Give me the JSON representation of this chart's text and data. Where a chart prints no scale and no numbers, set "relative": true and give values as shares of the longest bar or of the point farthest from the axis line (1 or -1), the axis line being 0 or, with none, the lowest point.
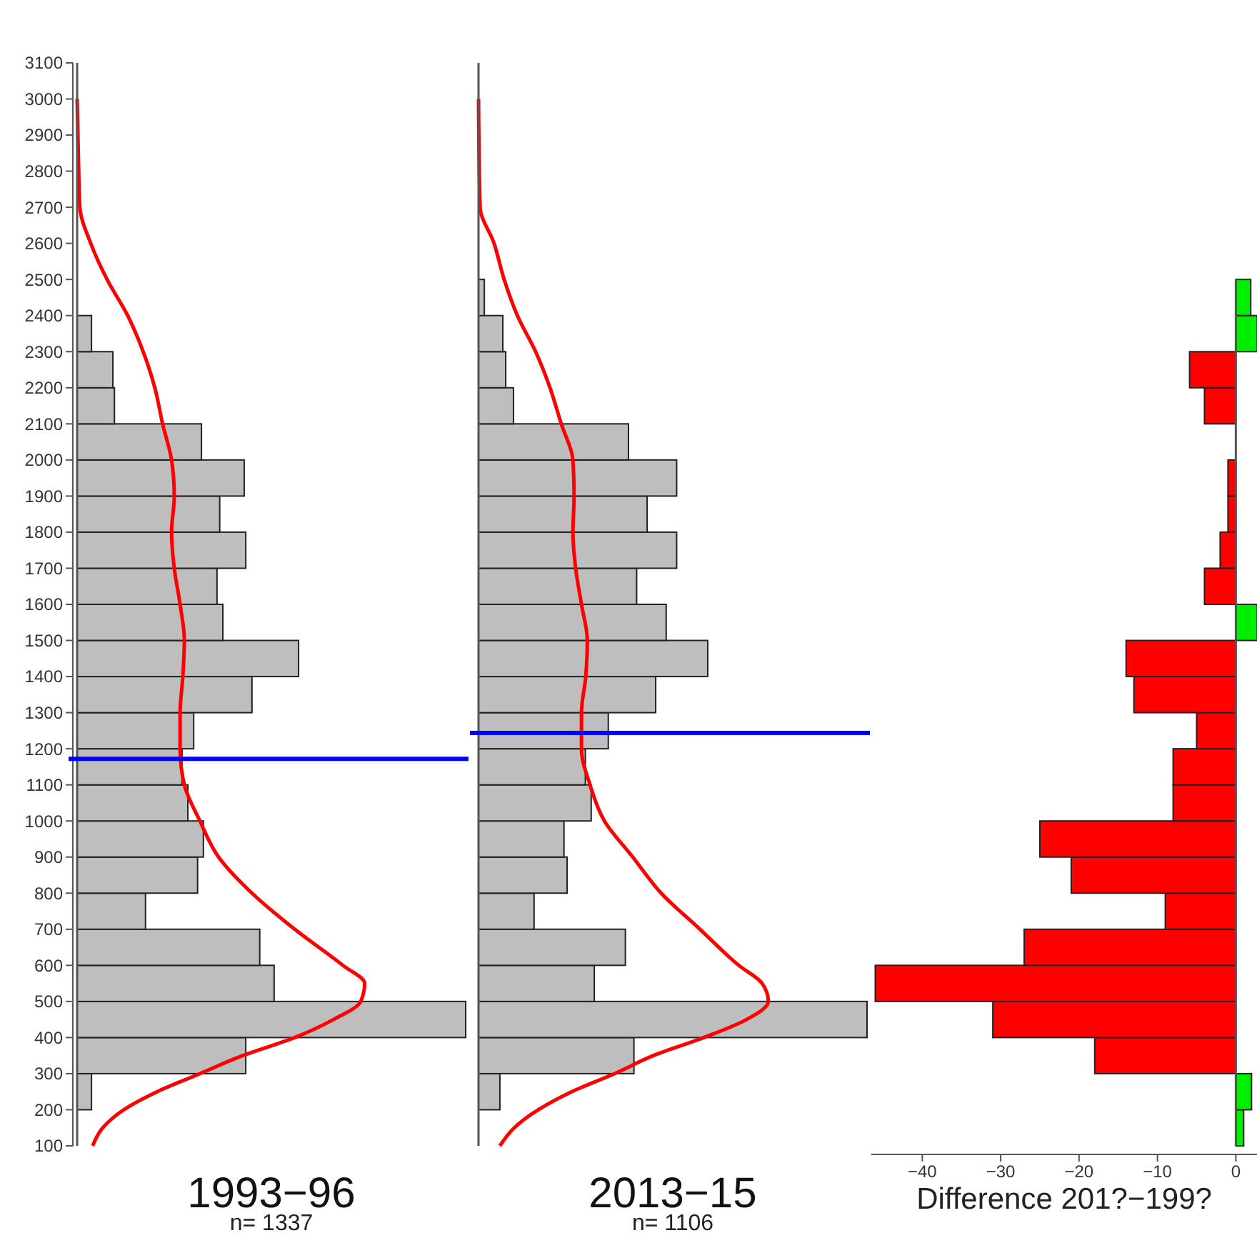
{
  "chart_data": [
    {
      "type": "histogram",
      "orientation": "horizontal",
      "relative": true,
      "title": "1993−96",
      "subtitle": "n= 1337",
      "ylim": [
        100,
        3100
      ],
      "yticks": [
        100,
        200,
        300,
        400,
        500,
        600,
        700,
        800,
        900,
        1000,
        1100,
        1200,
        1300,
        1400,
        1500,
        1600,
        1700,
        1800,
        1900,
        2000,
        2100,
        2200,
        2300,
        2400,
        2500,
        2600,
        2700,
        2800,
        2900,
        3000,
        3100
      ],
      "bins": [
        200,
        300,
        400,
        500,
        600,
        700,
        800,
        900,
        1000,
        1100,
        1200,
        1300,
        1400,
        1500,
        1600,
        1700,
        1800,
        1900,
        2000,
        2100,
        2200,
        2300,
        2400
      ],
      "series": [
        {
          "values": [
            0.037,
            0.434,
            1,
            0.507,
            0.47,
            0.176,
            0.31,
            0.325,
            0.285,
            0.27,
            0.3,
            0.45,
            0.57,
            0.375,
            0.36,
            0.434,
            0.367,
            0.43,
            0.32,
            0.096,
            0.092,
            0.037
          ],
          "color": "#bebebe"
        },
        {
          "type": "line",
          "color": "#ff0000",
          "x": [
            100,
            150,
            200,
            250,
            300,
            350,
            400,
            450,
            500,
            550,
            600,
            700,
            800,
            900,
            1000,
            1100,
            1200,
            1300,
            1400,
            1500,
            1600,
            1700,
            1800,
            1900,
            2000,
            2100,
            2200,
            2300,
            2400,
            2500,
            2600,
            2700,
            2800,
            3000
          ],
          "values": [
            0.04,
            0.066,
            0.12,
            0.206,
            0.316,
            0.426,
            0.56,
            0.66,
            0.73,
            0.74,
            0.684,
            0.56,
            0.45,
            0.364,
            0.316,
            0.276,
            0.265,
            0.265,
            0.272,
            0.276,
            0.265,
            0.25,
            0.243,
            0.25,
            0.243,
            0.22,
            0.2,
            0.17,
            0.13,
            0.077,
            0.035,
            0.007,
            0.004,
            0
          ]
        }
      ],
      "ref_lines": [
        {
          "axis": "y",
          "value": 1172,
          "color": "#0000ff"
        }
      ]
    },
    {
      "type": "histogram",
      "orientation": "horizontal",
      "relative": true,
      "tick_labels": false,
      "title": "2013−15",
      "subtitle": "n= 1106",
      "ylim": [
        100,
        3100
      ],
      "bins": [
        200,
        300,
        400,
        500,
        600,
        700,
        800,
        900,
        1000,
        1100,
        1200,
        1300,
        1400,
        1500,
        1600,
        1700,
        1800,
        1900,
        2000,
        2100,
        2200,
        2300,
        2400,
        2500
      ],
      "series": [
        {
          "values": [
            0.055,
            0.4,
            1,
            0.298,
            0.378,
            0.143,
            0.228,
            0.22,
            0.29,
            0.275,
            0.334,
            0.456,
            0.59,
            0.483,
            0.407,
            0.51,
            0.434,
            0.51,
            0.386,
            0.09,
            0.07,
            0.0625,
            0.015
          ],
          "color": "#bebebe"
        },
        {
          "type": "line",
          "color": "#ff0000",
          "x": [
            100,
            150,
            200,
            250,
            300,
            350,
            400,
            450,
            500,
            550,
            600,
            700,
            800,
            900,
            1000,
            1100,
            1200,
            1300,
            1400,
            1500,
            1600,
            1700,
            1800,
            1900,
            2000,
            2100,
            2200,
            2300,
            2400,
            2500,
            2600,
            2700,
            3000
          ],
          "values": [
            0.055,
            0.092,
            0.154,
            0.24,
            0.35,
            0.45,
            0.58,
            0.69,
            0.746,
            0.73,
            0.67,
            0.57,
            0.47,
            0.397,
            0.324,
            0.287,
            0.265,
            0.265,
            0.276,
            0.28,
            0.265,
            0.25,
            0.243,
            0.246,
            0.243,
            0.213,
            0.184,
            0.147,
            0.1,
            0.066,
            0.04,
            0.004,
            0
          ]
        }
      ],
      "ref_lines": [
        {
          "axis": "y",
          "value": 1244,
          "color": "#0000ff"
        }
      ]
    },
    {
      "type": "histogram",
      "orientation": "horizontal",
      "tick_labels": "x",
      "xlabel": "Difference 201?−199?",
      "ylim": [
        100,
        3100
      ],
      "xlim": [
        -46.5,
        2.7
      ],
      "xticks": [
        {
          "value": -40,
          "label": "−40"
        },
        {
          "value": -30,
          "label": "−30"
        },
        {
          "value": -20,
          "label": "−20"
        },
        {
          "value": -10,
          "label": "−10"
        },
        0
      ],
      "bins": [
        100,
        200,
        300,
        400,
        500,
        600,
        700,
        800,
        900,
        1000,
        1100,
        1200,
        1300,
        1400,
        1500,
        1600,
        1700,
        1800,
        1900,
        2000,
        2100,
        2200,
        2300,
        2400,
        2500
      ],
      "values": [
        1,
        2,
        -18,
        -31,
        -46,
        -27,
        -9,
        -21,
        -25,
        -8,
        -8,
        -5,
        -13,
        -14,
        2.7,
        -4,
        -2,
        -1,
        -1,
        0,
        -4,
        -5.9,
        2.7,
        1.9
      ],
      "colors": [
        "#00ee00",
        "#00ee00",
        "#ff0000",
        "#ff0000",
        "#ff0000",
        "#ff0000",
        "#ff0000",
        "#ff0000",
        "#ff0000",
        "#ff0000",
        "#ff0000",
        "#ff0000",
        "#ff0000",
        "#ff0000",
        "#00ee00",
        "#ff0000",
        "#ff0000",
        "#ff0000",
        "#ff0000",
        "#ff0000",
        "#ff0000",
        "#ff0000",
        "#00ee00",
        "#00ee00"
      ]
    }
  ]
}
